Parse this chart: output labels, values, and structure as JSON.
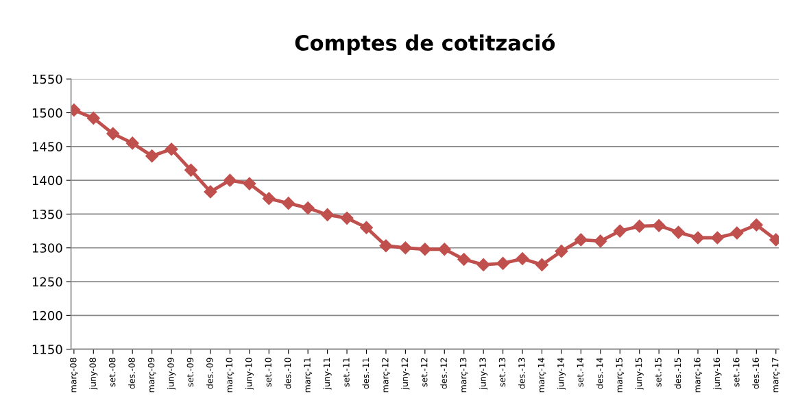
{
  "chart_data": {
    "type": "line",
    "title": "Comptes de cotització",
    "categories": [
      "març-08",
      "juny-08",
      "set.-08",
      "des.-08",
      "març-09",
      "juny-09",
      "set.-09",
      "des.-09",
      "març-10",
      "juny-10",
      "set.-10",
      "des.-10",
      "març-11",
      "juny-11",
      "set.-11",
      "des.-11",
      "març-12",
      "juny-12",
      "set.-12",
      "des.-12",
      "març-13",
      "juny-13",
      "set.-13",
      "des.-13",
      "març-14",
      "juny-14",
      "set.-14",
      "des.-14",
      "març-15",
      "juny-15",
      "set.-15",
      "des.-15",
      "març-16",
      "juny-16",
      "set.-16",
      "des.-16",
      "març-17"
    ],
    "series": [
      {
        "color": "#c0504d",
        "values": [
          1504,
          1492,
          1469,
          1455,
          1436,
          1446,
          1415,
          1383,
          1400,
          1395,
          1373,
          1366,
          1359,
          1349,
          1344,
          1330,
          1303,
          1300,
          1298,
          1298,
          1283,
          1275,
          1277,
          1284,
          1275,
          1295,
          1312,
          1310,
          1325,
          1332,
          1333,
          1323,
          1315,
          1315,
          1322,
          1334,
          1312
        ]
      }
    ],
    "ylim": [
      1150,
      1550
    ],
    "yticks": [
      1150,
      1200,
      1250,
      1300,
      1350,
      1400,
      1450,
      1500,
      1550
    ],
    "grid": "y",
    "legend": false,
    "marker": "diamond",
    "line_style": "solid"
  }
}
